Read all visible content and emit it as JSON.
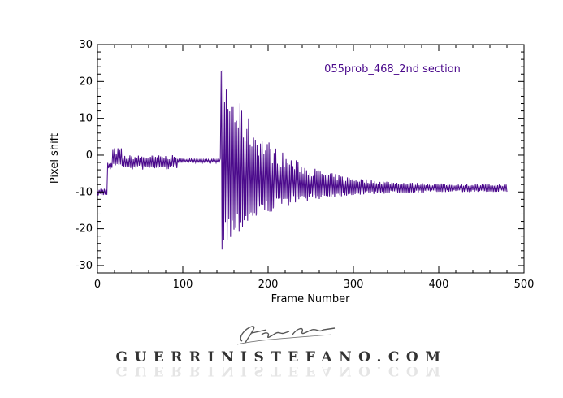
{
  "chart_data": {
    "type": "line",
    "title": "",
    "annotation": "055prob_468_2nd section",
    "xlabel": "Frame Number",
    "ylabel": "Pixel shift",
    "xlim": [
      0,
      500
    ],
    "ylim": [
      -32,
      30
    ],
    "xticks": [
      0,
      100,
      200,
      300,
      400,
      500
    ],
    "yticks": [
      -30,
      -20,
      -10,
      0,
      10,
      20,
      30
    ],
    "grid": false,
    "series": [
      {
        "color": "#4b0a8c",
        "segments": [
          {
            "x_start": 0,
            "x_end": 12,
            "center": -10,
            "amp_upper": 1,
            "amp_lower": 1
          },
          {
            "x_start": 12,
            "x_end": 18,
            "center": -3,
            "amp_upper": 1,
            "amp_lower": 1
          },
          {
            "x_start": 18,
            "x_end": 30,
            "center": -1,
            "amp_upper": 3,
            "amp_lower": 2
          },
          {
            "x_start": 30,
            "x_end": 95,
            "center": -2,
            "amp_upper": 2,
            "amp_lower": 2
          },
          {
            "x_start": 95,
            "x_end": 145,
            "center": -1.5,
            "amp_upper": 0.6,
            "amp_lower": 0.6
          }
        ],
        "burst": {
          "x_start": 145,
          "x_end": 480,
          "center": -9,
          "peak_upper": 25,
          "peak_lower": -26,
          "tail_amplitude": 1
        }
      }
    ]
  },
  "watermark": {
    "text": "GUERRINISTEFANO.COM",
    "signature_text": "Stefano Guerrini"
  }
}
